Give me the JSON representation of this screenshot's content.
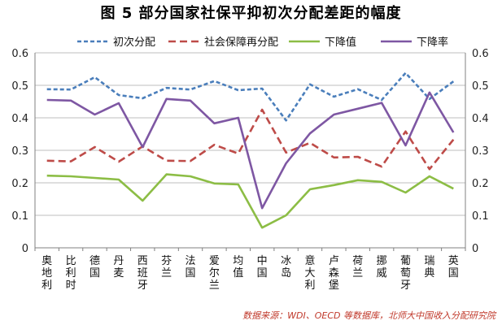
{
  "chart_data": {
    "type": "line",
    "title": "图 5  部分国家社保平抑初次分配差距的幅度",
    "source": "数据来源：WDI、OECD 等数据库，北师大中国收入分配研究院",
    "categories": [
      "奥地利",
      "比利时",
      "德国",
      "丹麦",
      "西班牙",
      "芬兰",
      "法国",
      "爱尔兰",
      "均值",
      "中国",
      "冰岛",
      "意大利",
      "卢森堡",
      "荷兰",
      "挪威",
      "葡萄牙",
      "瑞典",
      "英国"
    ],
    "ylim": [
      0,
      0.6
    ],
    "yticks": [
      "0",
      "0.1",
      "0.2",
      "0.3",
      "0.4",
      "0.5",
      "0.6"
    ],
    "grid": true,
    "legend_position": "top",
    "series": [
      {
        "name": "初次分配",
        "color": "#4a7ebb",
        "style": "dashed",
        "values": [
          0.488,
          0.487,
          0.525,
          0.47,
          0.46,
          0.492,
          0.487,
          0.513,
          0.485,
          0.49,
          0.392,
          0.503,
          0.465,
          0.488,
          0.455,
          0.538,
          0.458,
          0.512
        ]
      },
      {
        "name": "社会保障再分配",
        "color": "#be4b48",
        "style": "longdash",
        "values": [
          0.268,
          0.266,
          0.31,
          0.265,
          0.312,
          0.268,
          0.267,
          0.317,
          0.29,
          0.425,
          0.293,
          0.323,
          0.278,
          0.28,
          0.25,
          0.358,
          0.242,
          0.333
        ]
      },
      {
        "name": "下降值",
        "color": "#8cbd45",
        "style": "solid",
        "values": [
          0.222,
          0.22,
          0.215,
          0.21,
          0.145,
          0.226,
          0.22,
          0.198,
          0.195,
          0.062,
          0.1,
          0.18,
          0.193,
          0.208,
          0.203,
          0.17,
          0.22,
          0.182
        ]
      },
      {
        "name": "下降率",
        "color": "#7e57a3",
        "style": "solid",
        "values": [
          0.455,
          0.453,
          0.41,
          0.445,
          0.31,
          0.458,
          0.453,
          0.383,
          0.4,
          0.122,
          0.26,
          0.352,
          0.41,
          0.428,
          0.446,
          0.315,
          0.478,
          0.355
        ]
      }
    ]
  }
}
